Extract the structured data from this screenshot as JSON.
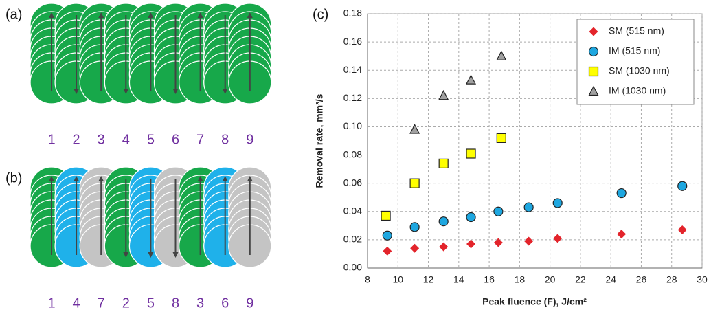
{
  "panels": [
    {
      "label": "(a)",
      "columns": [
        {
          "number": "1",
          "color": "#17a84a",
          "direction": "up"
        },
        {
          "number": "2",
          "color": "#17a84a",
          "direction": "down"
        },
        {
          "number": "3",
          "color": "#17a84a",
          "direction": "up"
        },
        {
          "number": "4",
          "color": "#17a84a",
          "direction": "down"
        },
        {
          "number": "5",
          "color": "#17a84a",
          "direction": "up"
        },
        {
          "number": "6",
          "color": "#17a84a",
          "direction": "down"
        },
        {
          "number": "7",
          "color": "#17a84a",
          "direction": "up"
        },
        {
          "number": "8",
          "color": "#17a84a",
          "direction": "down"
        },
        {
          "number": "9",
          "color": "#17a84a",
          "direction": "up"
        }
      ]
    },
    {
      "label": "(b)",
      "columns": [
        {
          "number": "1",
          "color": "#17a84a",
          "direction": "up"
        },
        {
          "number": "4",
          "color": "#1fb1ea",
          "direction": "up"
        },
        {
          "number": "7",
          "color": "#c4c4c4",
          "direction": "up"
        },
        {
          "number": "2",
          "color": "#17a84a",
          "direction": "down"
        },
        {
          "number": "5",
          "color": "#1fb1ea",
          "direction": "down"
        },
        {
          "number": "8",
          "color": "#c4c4c4",
          "direction": "down"
        },
        {
          "number": "3",
          "color": "#17a84a",
          "direction": "up"
        },
        {
          "number": "6",
          "color": "#1fb1ea",
          "direction": "up"
        },
        {
          "number": "9",
          "color": "#c4c4c4",
          "direction": "up"
        }
      ]
    }
  ],
  "chart_data": {
    "type": "scatter",
    "panel_label": "(c)",
    "x_label": "Peak fluence (F), J/cm²",
    "y_label": "Removal rate, mm³/s",
    "xlim": [
      8,
      30
    ],
    "xticks": [
      8,
      10,
      12,
      14,
      16,
      18,
      20,
      22,
      24,
      26,
      28,
      30
    ],
    "ylim": [
      0,
      0.18
    ],
    "yticks": [
      {
        "value": 0,
        "label": "0.00"
      },
      {
        "value": 0.02,
        "label": "0.02"
      },
      {
        "value": 0.04,
        "label": "0.04"
      },
      {
        "value": 0.06,
        "label": "0.06"
      },
      {
        "value": 0.08,
        "label": "0.08"
      },
      {
        "value": 0.1,
        "label": "0.10"
      },
      {
        "value": 0.12,
        "label": "0.12"
      },
      {
        "value": 0.14,
        "label": "0.14"
      },
      {
        "value": 0.16,
        "label": "0.16"
      },
      {
        "value": 0.18,
        "label": "0.18"
      }
    ],
    "grid": true,
    "legend": "upper right",
    "series": [
      {
        "name": "SM (515 nm)",
        "color": "#e3242b",
        "marker": "diamond",
        "x": [
          9.3,
          11.1,
          13,
          14.8,
          16.6,
          18.6,
          20.5,
          24.7,
          28.7
        ],
        "values": [
          0.012,
          0.014,
          0.015,
          0.017,
          0.018,
          0.019,
          0.021,
          0.024,
          0.027
        ]
      },
      {
        "name": "IM (515 nm)",
        "color": "#1ea7e0",
        "marker": "circle",
        "x": [
          9.3,
          11.1,
          13,
          14.8,
          16.6,
          18.6,
          20.5,
          24.7,
          28.7
        ],
        "values": [
          0.023,
          0.029,
          0.033,
          0.036,
          0.04,
          0.043,
          0.046,
          0.053,
          0.058
        ]
      },
      {
        "name": "SM (1030 nm)",
        "color": "#ffff00",
        "marker": "square",
        "x": [
          9.2,
          11.1,
          13,
          14.8,
          16.8
        ],
        "values": [
          0.037,
          0.06,
          0.074,
          0.081,
          0.092
        ]
      },
      {
        "name": "IM (1030 nm)",
        "color": "#a0a0a0",
        "marker": "triangle",
        "x": [
          11.1,
          13,
          14.8,
          16.8
        ],
        "values": [
          0.098,
          0.122,
          0.133,
          0.15
        ]
      }
    ]
  }
}
